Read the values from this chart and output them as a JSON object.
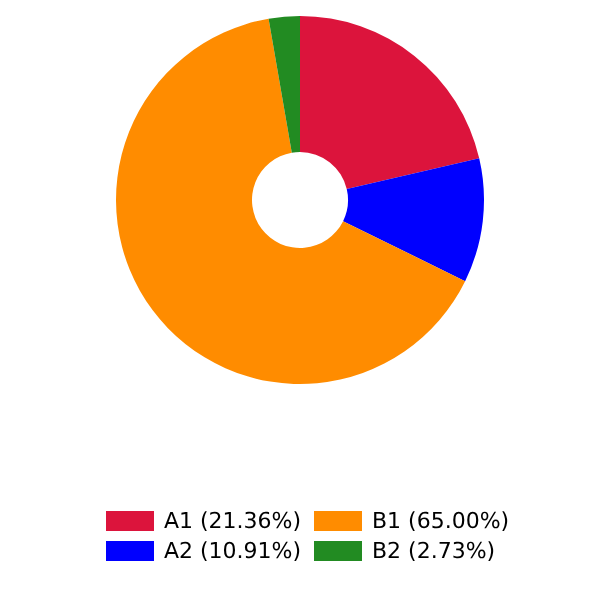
{
  "chart_data": {
    "type": "donut",
    "categories": [
      "A1 (21.36%)",
      "A2 (10.91%)",
      "B1 (65.00%)",
      "B2 (2.73%)"
    ],
    "values": [
      21.36,
      10.91,
      65.0,
      2.73
    ],
    "colors": [
      "#dc143c",
      "#0000ff",
      "#ff8c00",
      "#228b22"
    ],
    "legend": "bottom"
  }
}
